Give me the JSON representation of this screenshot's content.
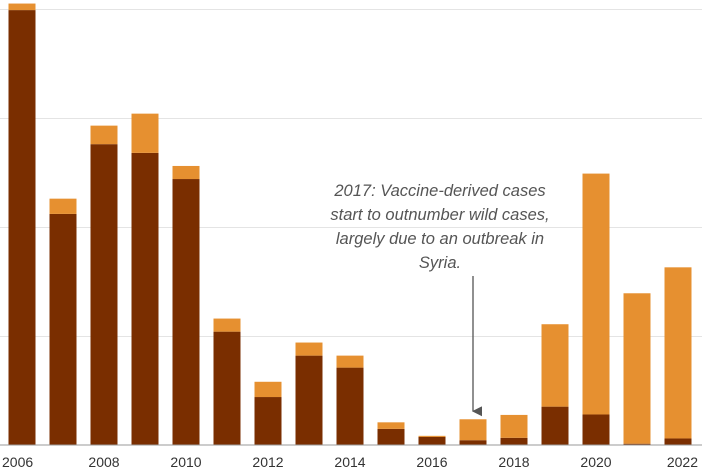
{
  "chart_data": {
    "type": "bar",
    "stacked": true,
    "categories": [
      "2006",
      "2007",
      "2008",
      "2009",
      "2010",
      "2011",
      "2012",
      "2013",
      "2014",
      "2015",
      "2016",
      "2017",
      "2018",
      "2019",
      "2020",
      "2021",
      "2022"
    ],
    "x_tick_labels": [
      "2006",
      "2008",
      "2010",
      "2012",
      "2014",
      "2016",
      "2018",
      "2020",
      "2022"
    ],
    "series": [
      {
        "color": "#7a2e00",
        "values": [
          1995,
          1060,
          1380,
          1340,
          1220,
          520,
          220,
          410,
          355,
          74,
          37,
          22,
          33,
          176,
          140,
          6,
          30
        ]
      },
      {
        "color": "#e69030",
        "values": [
          30,
          70,
          85,
          180,
          60,
          60,
          70,
          60,
          55,
          30,
          5,
          96,
          105,
          378,
          1105,
          690,
          785
        ]
      }
    ],
    "ylim": [
      0,
      2000
    ],
    "ygrid": [
      0,
      500,
      1000,
      1500,
      2000
    ],
    "grid": true,
    "annotation": {
      "lines": [
        "2017: Vaccine-derived cases",
        "start to outnumber wild cases,",
        "largely due to an outbreak in",
        "Syria."
      ],
      "target_category": "2017"
    },
    "colors": {
      "dark": "#7a2e00",
      "light": "#e69030",
      "arrow": "#555555"
    }
  }
}
